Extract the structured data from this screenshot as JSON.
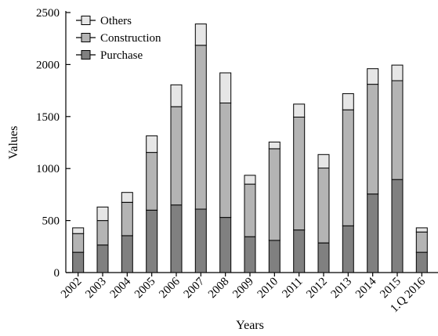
{
  "chart_data": {
    "type": "bar",
    "stacked": true,
    "title": "",
    "xlabel": "Years",
    "ylabel": "Values",
    "ylim": [
      0,
      2500
    ],
    "yticks": [
      0,
      500,
      1000,
      1500,
      2000,
      2500
    ],
    "grid": false,
    "legend_position": "top-left",
    "categories": [
      "2002",
      "2003",
      "2004",
      "2005",
      "2006",
      "2007",
      "2008",
      "2009",
      "2010",
      "2011",
      "2012",
      "2013",
      "2014",
      "2015",
      "1.Q 2016"
    ],
    "series": [
      {
        "name": "Purchase",
        "color": "#808080",
        "values": [
          195,
          265,
          355,
          600,
          650,
          610,
          530,
          345,
          310,
          410,
          285,
          450,
          755,
          895,
          195
        ]
      },
      {
        "name": "Construction",
        "color": "#b4b4b4",
        "values": [
          180,
          235,
          320,
          555,
          945,
          1575,
          1100,
          505,
          880,
          1085,
          720,
          1115,
          1055,
          950,
          195
        ]
      },
      {
        "name": "Others",
        "color": "#e6e6e6",
        "values": [
          55,
          130,
          95,
          160,
          210,
          205,
          290,
          85,
          65,
          125,
          130,
          155,
          150,
          150,
          40
        ]
      }
    ]
  }
}
